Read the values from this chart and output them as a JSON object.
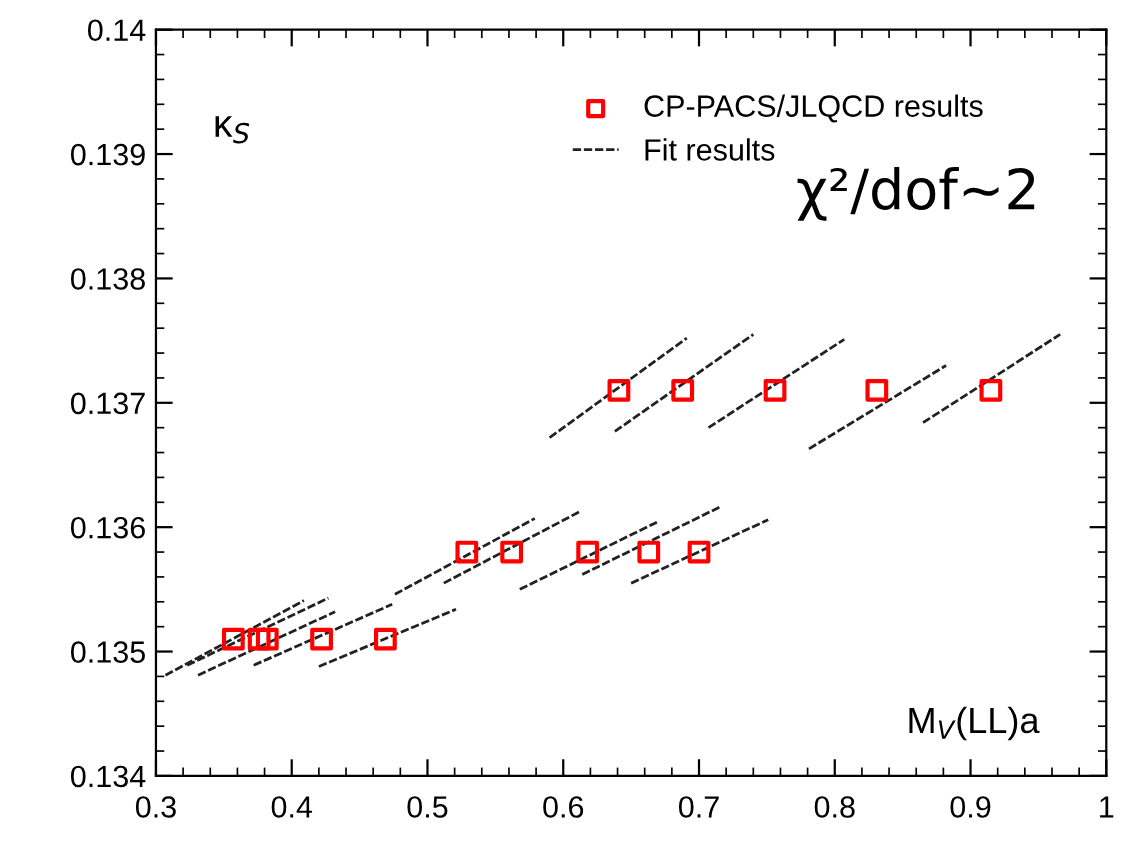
{
  "chart_data": {
    "type": "scatter",
    "xlabel": "M$_{V}$(LL)a",
    "ylabel": "κ$_{S}$",
    "annotations": [
      "χ²/dof~2"
    ],
    "xlim": [
      0.3,
      1.0
    ],
    "xticks": [
      0.3,
      0.4,
      0.5,
      0.6,
      0.7,
      0.8,
      0.9,
      1
    ],
    "ylim": [
      0.134,
      0.14
    ],
    "yticks": [
      0.134,
      0.135,
      0.136,
      0.137,
      0.138,
      0.139,
      0.14
    ],
    "legend": "top right",
    "grid": false,
    "series": [
      {
        "name": "CP-PACS/JLQCD results",
        "marker": "square",
        "color": "#ff0000",
        "x": [
          0.641,
          0.688,
          0.756,
          0.831,
          0.915,
          0.529,
          0.562,
          0.618,
          0.663,
          0.7,
          0.357,
          0.376,
          0.382,
          0.422,
          0.469
        ],
        "values": [
          0.1371,
          0.1371,
          0.1371,
          0.1371,
          0.1371,
          0.1358,
          0.1358,
          0.1358,
          0.1358,
          0.1358,
          0.1351,
          0.1351,
          0.1351,
          0.1351,
          0.1351
        ]
      },
      {
        "name": "Fit results",
        "type": "line",
        "line_style": "dashed",
        "color": "#222222",
        "x": [
          0.59,
          0.691
        ],
        "values": [
          0.13672,
          0.13752
        ]
      },
      {
        "type": "line",
        "line_style": "dashed",
        "color": "#222222",
        "x": [
          0.638,
          0.74
        ],
        "values": [
          0.13677,
          0.13755
        ]
      },
      {
        "type": "line",
        "line_style": "dashed",
        "color": "#222222",
        "x": [
          0.707,
          0.807
        ],
        "values": [
          0.1368,
          0.13751
        ]
      },
      {
        "type": "line",
        "line_style": "dashed",
        "color": "#222222",
        "x": [
          0.781,
          0.882
        ],
        "values": [
          0.13663,
          0.1373
        ]
      },
      {
        "type": "line",
        "line_style": "dashed",
        "color": "#222222",
        "x": [
          0.865,
          0.966
        ],
        "values": [
          0.13684,
          0.13755
        ]
      },
      {
        "type": "line",
        "line_style": "dashed",
        "color": "#222222",
        "x": [
          0.476,
          0.579
        ],
        "values": [
          0.13546,
          0.13607
        ]
      },
      {
        "type": "line",
        "line_style": "dashed",
        "color": "#222222",
        "x": [
          0.512,
          0.613
        ],
        "values": [
          0.13555,
          0.13613
        ]
      },
      {
        "type": "line",
        "line_style": "dashed",
        "color": "#222222",
        "x": [
          0.568,
          0.669
        ],
        "values": [
          0.1355,
          0.13604
        ]
      },
      {
        "type": "line",
        "line_style": "dashed",
        "color": "#222222",
        "x": [
          0.614,
          0.715
        ],
        "values": [
          0.13562,
          0.13616
        ]
      },
      {
        "type": "line",
        "line_style": "dashed",
        "color": "#222222",
        "x": [
          0.65,
          0.751
        ],
        "values": [
          0.13555,
          0.13606
        ]
      },
      {
        "type": "line",
        "line_style": "dashed",
        "color": "#222222",
        "x": [
          0.307,
          0.409
        ],
        "values": [
          0.13481,
          0.13541
        ]
      },
      {
        "type": "line",
        "line_style": "dashed",
        "color": "#222222",
        "x": [
          0.323,
          0.427
        ],
        "values": [
          0.13489,
          0.13543
        ]
      },
      {
        "type": "line",
        "line_style": "dashed",
        "color": "#222222",
        "x": [
          0.331,
          0.432
        ],
        "values": [
          0.13481,
          0.13532
        ]
      },
      {
        "type": "line",
        "line_style": "dashed",
        "color": "#222222",
        "x": [
          0.372,
          0.474
        ],
        "values": [
          0.13489,
          0.13538
        ]
      },
      {
        "type": "line",
        "line_style": "dashed",
        "color": "#222222",
        "x": [
          0.42,
          0.521
        ],
        "values": [
          0.13488,
          0.13534
        ]
      }
    ]
  }
}
